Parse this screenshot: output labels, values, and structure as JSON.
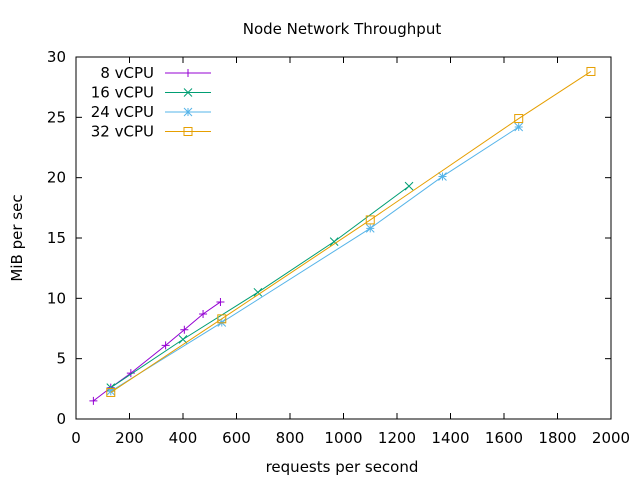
{
  "chart_data": {
    "type": "line",
    "title": "Node Network Throughput",
    "xlabel": "requests per second",
    "ylabel": "MiB per sec",
    "xlim": [
      0,
      2000
    ],
    "ylim": [
      0,
      30
    ],
    "xticks": [
      0,
      200,
      400,
      600,
      800,
      1000,
      1200,
      1400,
      1600,
      1800,
      2000
    ],
    "yticks": [
      0,
      5,
      10,
      15,
      20,
      25,
      30
    ],
    "grid": false,
    "legend_position": "top-left",
    "series": [
      {
        "name": "8 vCPU",
        "color": "#9400d3",
        "marker": "plus",
        "x": [
          65,
          130,
          205,
          335,
          405,
          475,
          540
        ],
        "y": [
          1.5,
          2.6,
          3.8,
          6.1,
          7.4,
          8.7,
          9.7
        ]
      },
      {
        "name": "16 vCPU",
        "color": "#009e73",
        "marker": "cross",
        "x": [
          130,
          400,
          680,
          965,
          1245
        ],
        "y": [
          2.6,
          6.6,
          10.5,
          14.7,
          19.3
        ]
      },
      {
        "name": "24 vCPU",
        "color": "#56b4e9",
        "marker": "star",
        "x": [
          130,
          545,
          1100,
          1370,
          1655
        ],
        "y": [
          2.3,
          8.0,
          15.8,
          20.1,
          24.2
        ]
      },
      {
        "name": "32 vCPU",
        "color": "#e69f00",
        "marker": "square",
        "x": [
          130,
          545,
          1100,
          1655,
          1925
        ],
        "y": [
          2.2,
          8.3,
          16.5,
          24.9,
          28.8
        ]
      }
    ]
  }
}
